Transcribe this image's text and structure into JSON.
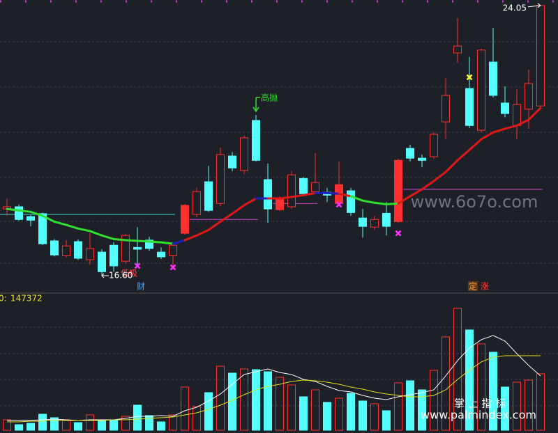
{
  "chart_data": {
    "type": "candlestick",
    "ylim": [
      16.14,
      24.2
    ],
    "open": [
      18.44,
      18.5,
      18.23,
      18.31,
      17.56,
      17.15,
      17.54,
      17.04,
      17.25,
      17.44,
      17.0,
      17.38,
      17.58,
      17.25,
      17.15,
      17.77,
      18.29,
      19.19,
      18.59,
      19.9,
      19.5,
      20.88,
      19.25,
      18.42,
      18.5,
      19.28,
      18.92,
      18.9,
      18.59,
      18.94,
      18.19,
      17.94,
      18.32,
      18.09,
      20.11,
      19.84,
      19.88,
      20.84,
      22.74,
      21.76,
      20.61,
      22.49,
      21.36,
      20.74,
      21.19,
      21.28
    ],
    "close": [
      18.5,
      18.15,
      18.13,
      17.48,
      17.17,
      17.42,
      17.08,
      17.35,
      16.71,
      16.87,
      17.71,
      17.33,
      17.35,
      17.12,
      17.44,
      18.54,
      18.92,
      18.4,
      19.94,
      19.57,
      20.4,
      19.78,
      18.44,
      18.75,
      19.38,
      18.86,
      19.17,
      18.82,
      19.11,
      18.34,
      17.96,
      18.15,
      17.96,
      19.78,
      19.84,
      19.78,
      20.5,
      21.57,
      22.93,
      20.74,
      22.82,
      21.57,
      21.07,
      21.32,
      21.9,
      24.05
    ],
    "high": [
      18.73,
      18.56,
      18.27,
      18.34,
      17.61,
      17.58,
      17.6,
      17.77,
      17.33,
      17.52,
      17.75,
      17.94,
      17.67,
      17.38,
      17.52,
      18.57,
      19.02,
      19.63,
      20.13,
      20.01,
      20.46,
      21.03,
      19.69,
      18.79,
      19.48,
      19.32,
      19.98,
      19.02,
      19.75,
      19.02,
      18.44,
      18.25,
      18.63,
      19.82,
      20.21,
      19.94,
      20.55,
      22.05,
      23.7,
      22.63,
      22.86,
      23.43,
      21.82,
      21.74,
      22.28,
      24.05
    ],
    "low": [
      18.25,
      18.11,
      17.96,
      17.44,
      17.13,
      17.1,
      17.04,
      16.9,
      16.6,
      16.71,
      16.94,
      16.88,
      17.29,
      17.06,
      16.81,
      17.73,
      18.21,
      18.36,
      18.52,
      19.48,
      19.4,
      19.75,
      18.06,
      18.38,
      18.44,
      18.79,
      18.86,
      18.63,
      18.52,
      18.25,
      17.65,
      17.86,
      17.71,
      18.06,
      19.75,
      19.59,
      19.82,
      20.36,
      22.47,
      20.67,
      20.55,
      21.51,
      20.97,
      20.36,
      20.65,
      21.22
    ],
    "solid": [
      15,
      23,
      28,
      33
    ],
    "up_color": "#ff3030",
    "down_color": "#54ffff",
    "ma": {
      "values": [
        18.44,
        18.4,
        18.36,
        18.25,
        18.09,
        18.0,
        17.9,
        17.83,
        17.71,
        17.61,
        17.58,
        17.56,
        17.54,
        17.52,
        17.48,
        17.58,
        17.71,
        17.86,
        18.09,
        18.31,
        18.54,
        18.73,
        18.73,
        18.73,
        18.77,
        18.82,
        18.88,
        18.88,
        18.86,
        18.79,
        18.67,
        18.61,
        18.57,
        18.59,
        18.79,
        18.98,
        19.21,
        19.46,
        19.78,
        20.07,
        20.36,
        20.55,
        20.65,
        20.74,
        20.9,
        21.22
      ],
      "segment_colors": [
        "#30e030",
        "#30e030",
        "#30e030",
        "#30e030",
        "#30e030",
        "#30e030",
        "#30e030",
        "#30e030",
        "#30e030",
        "#30e030",
        "#30e030",
        "#30e030",
        "#30e030",
        "#30e030",
        "#2020c0",
        "#e01818",
        "#e01818",
        "#e01818",
        "#e01818",
        "#e01818",
        "#e01818",
        "#2020c0",
        "#e01818",
        "#e01818",
        "#e01818",
        "#e01818",
        "#2020c0",
        "#2020c0",
        "#e01818",
        "#30e030",
        "#30e030",
        "#30e030",
        "#30e030",
        "#e01818",
        "#e01818",
        "#e01818",
        "#e01818",
        "#e01818",
        "#e01818",
        "#e01818",
        "#e01818",
        "#e01818",
        "#e01818",
        "#e01818",
        "#e01818"
      ]
    },
    "levels": [
      {
        "value": 18.29,
        "from": 0,
        "to": 14,
        "color": "#40d8d8"
      },
      {
        "value": 18.15,
        "from": 16,
        "to": 21,
        "color": "#d040d0"
      },
      {
        "value": 18.59,
        "from": 23,
        "to": 26,
        "color": "#d040d0"
      },
      {
        "value": 18.98,
        "from": 34,
        "to": 45,
        "color": "#d040d0"
      }
    ],
    "signals": [
      {
        "index": 11,
        "value": 16.87,
        "color": "#ff30ff"
      },
      {
        "index": 14,
        "value": 16.83,
        "color": "#ff30ff"
      },
      {
        "index": 28,
        "value": 18.56,
        "color": "#ff30ff"
      },
      {
        "index": 33,
        "value": 17.77,
        "color": "#ff30ff"
      },
      {
        "index": 39,
        "value": 22.07,
        "color": "#ffff30"
      }
    ],
    "sell_signal": {
      "index": 21,
      "value": 21.13,
      "label": "高抛",
      "color": "#30e030"
    },
    "buy_label": {
      "index": 10,
      "label": "低吸"
    },
    "high_label": {
      "index": 45,
      "label": "24.05"
    },
    "low_label": {
      "index": 8,
      "label": "16.60"
    },
    "events": [
      {
        "index": 11,
        "label": "财",
        "color": "#4aa0ff"
      },
      {
        "index": 39,
        "label": "定",
        "color": "#ffa040"
      },
      {
        "index": 40,
        "label": "涨",
        "color": "#ff4040"
      }
    ],
    "volume_prefix": "0:",
    "volume_ylim": [
      0,
      360000
    ],
    "volume": [
      27285,
      14552,
      18190,
      41837,
      32742,
      27285,
      20009,
      40018,
      27285,
      27285,
      36380,
      65484,
      38199,
      21828,
      40018,
      112778,
      61846,
      98226,
      167348,
      149158,
      160072,
      158253,
      152796,
      138244,
      118235,
      87312,
      105502,
      72760,
      83674,
      96407,
      76398,
      69122,
      50932,
      123692,
      129149,
      105502,
      156434,
      243746,
      318325,
      261936,
      225556,
      203728,
      112778,
      125511,
      130968,
      147372
    ],
    "volume_ma": [
      {
        "color": "#ffffff",
        "values": [
          25466,
          25466,
          25466,
          27285,
          29104,
          27285,
          25466,
          27285,
          27285,
          27285,
          30923,
          36380,
          36380,
          38199,
          36380,
          50932,
          60027,
          76398,
          94588,
          120054,
          145520,
          152796,
          160072,
          150977,
          145520,
          132787,
          127330,
          114597,
          103683,
          100045,
          90950,
          83674,
          80036,
          87312,
          92769,
          98226,
          105502,
          141882,
          181900,
          214642,
          236470,
          247384,
          232832,
          200090,
          169167,
          141882
        ]
      },
      {
        "color": "#e8e020",
        "values": [
          21828,
          21828,
          23647,
          23647,
          25466,
          25466,
          25466,
          25466,
          25466,
          27285,
          27285,
          29104,
          30923,
          32742,
          34561,
          40018,
          45475,
          54570,
          65484,
          78217,
          92769,
          105502,
          114597,
          120054,
          127330,
          130968,
          129149,
          125511,
          120054,
          112778,
          107321,
          100045,
          94588,
          90950,
          87312,
          87312,
          90950,
          105502,
          132787,
          156434,
          178262,
          190995,
          194633,
          194633,
          194633,
          194633
        ]
      }
    ],
    "watermarks": [
      "www.6o7o.com",
      "掌 上 指 标",
      "www.palmindex.com"
    ]
  }
}
